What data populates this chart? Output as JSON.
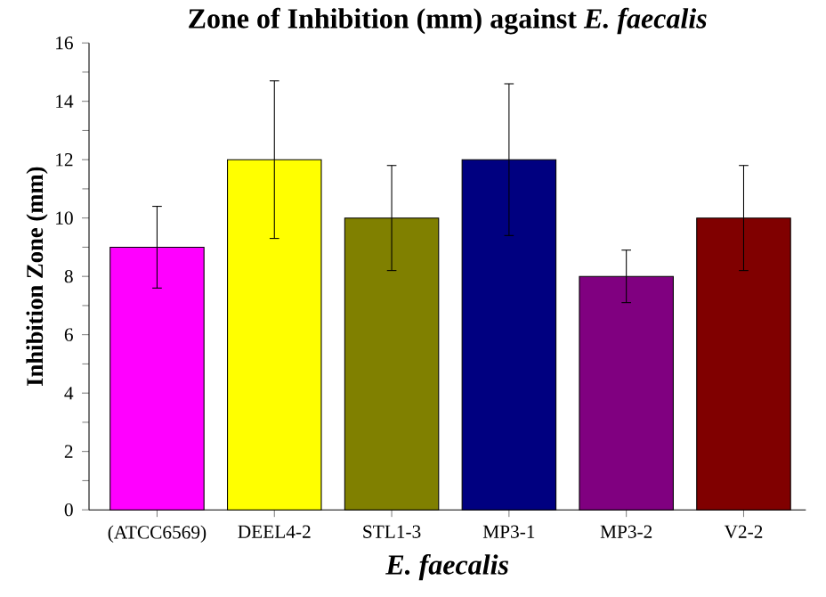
{
  "chart_data": {
    "type": "bar",
    "title": "Zone of Inhibition (mm) against *E. faecalis*",
    "xlabel": "E. faecalis",
    "ylabel": "Inhibition Zone (mm)",
    "categories": [
      "(ATCC6569)",
      "DEEL4-2",
      "STL1-3",
      "MP3-1",
      "MP3-2",
      "V2-2"
    ],
    "values": [
      9,
      12,
      10,
      12,
      8,
      10
    ],
    "errors": [
      1.4,
      2.7,
      1.8,
      2.6,
      0.9,
      1.8
    ],
    "colors": [
      "#ff00ff",
      "#ffff00",
      "#808000",
      "#000080",
      "#800080",
      "#800000"
    ],
    "ylim": [
      0,
      16
    ],
    "yticks": [
      0,
      2,
      4,
      6,
      8,
      10,
      12,
      14,
      16
    ],
    "grid": false
  }
}
